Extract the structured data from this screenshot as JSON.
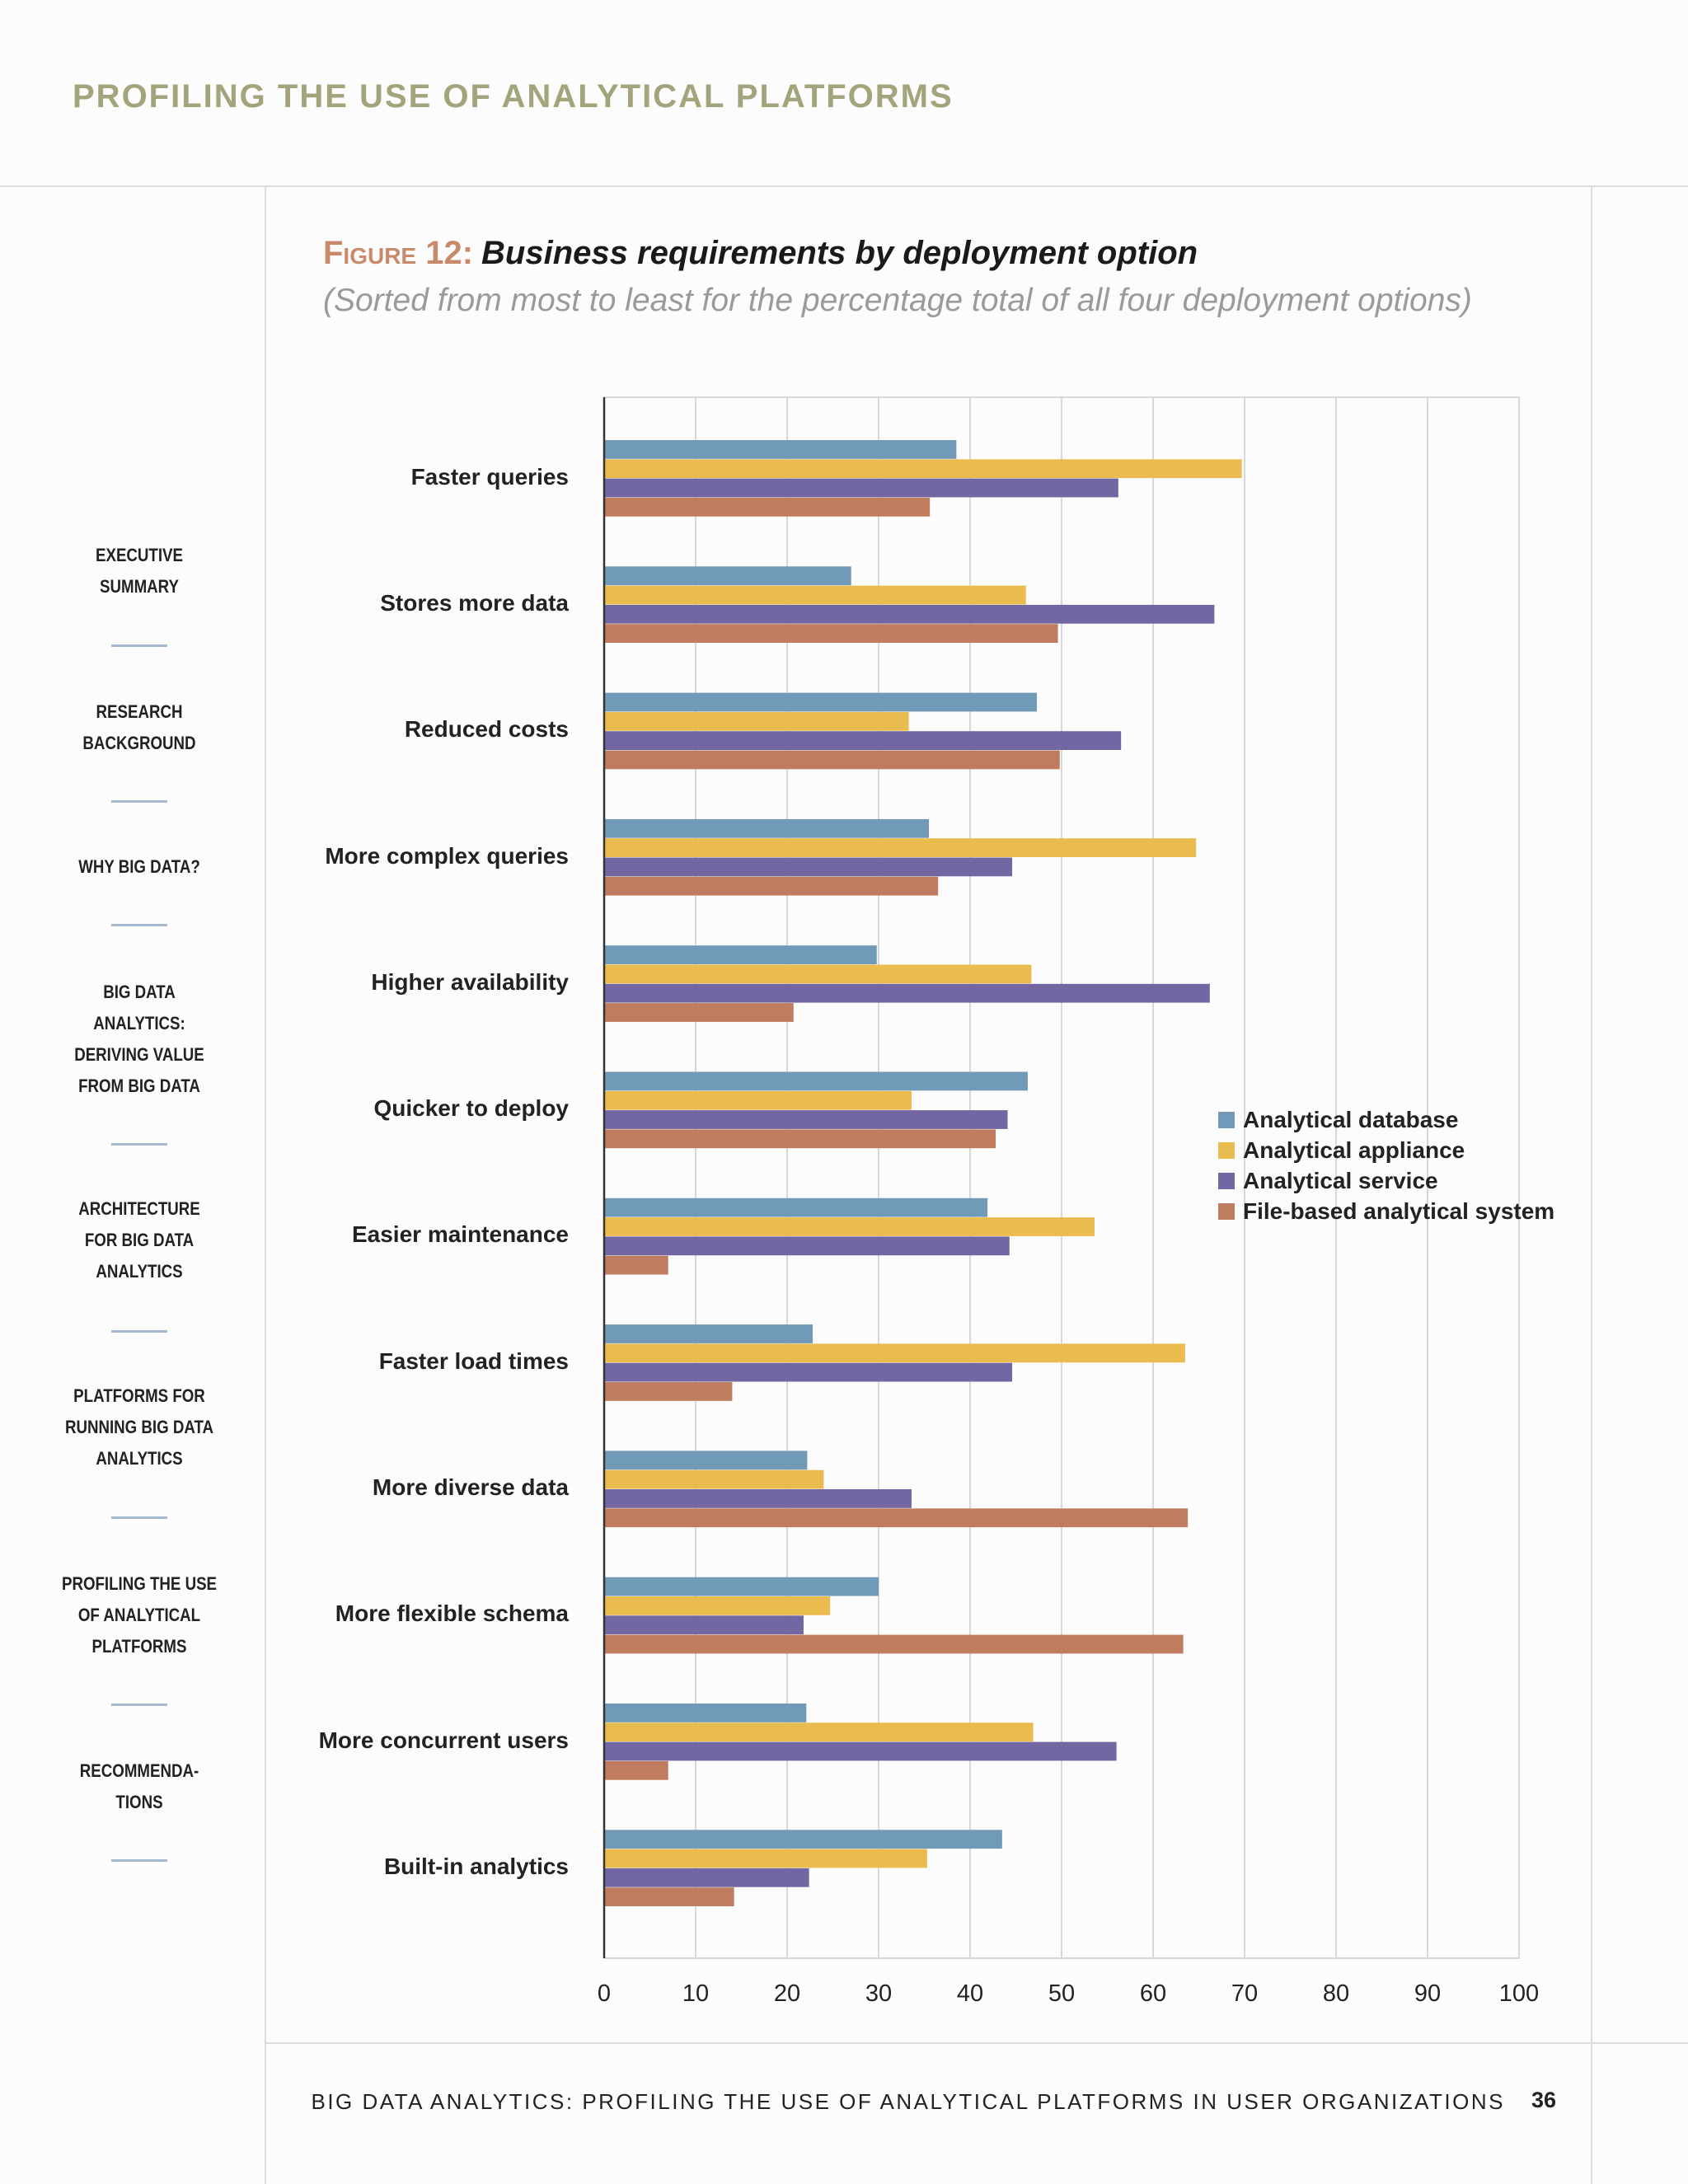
{
  "header": {
    "title": "PROFILING THE USE OF ANALYTICAL PLATFORMS"
  },
  "sidebar": {
    "items": [
      {
        "lines": [
          "EXECUTIVE",
          "SUMMARY"
        ]
      },
      {
        "lines": [
          "RESEARCH",
          "BACKGROUND"
        ]
      },
      {
        "lines": [
          "WHY BIG DATA?"
        ]
      },
      {
        "lines": [
          "BIG DATA",
          "ANALYTICS:",
          "DERIVING VALUE",
          "FROM BIG DATA"
        ]
      },
      {
        "lines": [
          "ARCHITECTURE",
          "FOR BIG DATA",
          "ANALYTICS"
        ]
      },
      {
        "lines": [
          "PLATFORMS FOR",
          "RUNNING BIG DATA",
          "ANALYTICS"
        ]
      },
      {
        "lines": [
          "PROFILING THE USE",
          "OF ANALYTICAL",
          "PLATFORMS"
        ]
      },
      {
        "lines": [
          "RECOMMENDA-",
          "TIONS"
        ]
      }
    ]
  },
  "figure": {
    "label": "Figure 12:",
    "title": "Business requirements by deployment option",
    "subtitle": "(Sorted from most to least for the percentage total of all four deployment options)"
  },
  "chart_data": {
    "type": "bar",
    "orientation": "horizontal",
    "categories": [
      "Faster queries",
      "Stores more data",
      "Reduced costs",
      "More complex queries",
      "Higher availability",
      "Quicker to deploy",
      "Easier maintenance",
      "Faster load times",
      "More diverse data",
      "More flexible schema",
      "More concurrent users",
      "Built-in analytics"
    ],
    "series": [
      {
        "name": "Analytical database",
        "color": "#7199b8",
        "values": [
          38.5,
          27,
          47.3,
          35.5,
          29.8,
          46.3,
          41.9,
          22.8,
          22.2,
          30,
          22.1,
          43.5
        ]
      },
      {
        "name": "Analytical appliance",
        "color": "#eabb4f",
        "values": [
          69.7,
          46.1,
          33.3,
          64.7,
          46.7,
          33.6,
          53.6,
          63.5,
          24,
          24.7,
          46.9,
          35.3
        ]
      },
      {
        "name": "Analytical service",
        "color": "#7267a3",
        "values": [
          56.2,
          66.7,
          56.5,
          44.6,
          66.2,
          44.1,
          44.3,
          44.6,
          33.6,
          21.8,
          56,
          22.4
        ]
      },
      {
        "name": "File-based analytical system",
        "color": "#c07c5e",
        "values": [
          35.6,
          49.6,
          49.8,
          36.5,
          20.7,
          42.8,
          7,
          14,
          63.8,
          63.3,
          7,
          14.2
        ]
      }
    ],
    "xlim": [
      0,
      100
    ],
    "xticks": [
      "0",
      "10",
      "20",
      "30",
      "40",
      "50",
      "60",
      "70",
      "80",
      "90",
      "100"
    ],
    "grid": true,
    "legend": "right"
  },
  "footer": {
    "text": "BIG DATA ANALYTICS: PROFILING THE USE OF ANALYTICAL PLATFORMS IN USER ORGANIZATIONS",
    "page": "36"
  }
}
